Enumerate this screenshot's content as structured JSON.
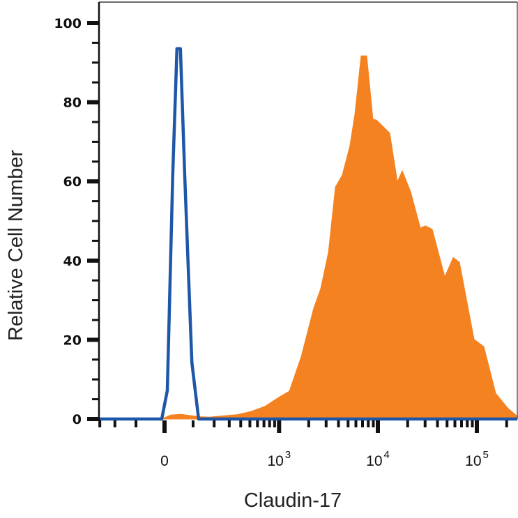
{
  "chart_data": {
    "type": "area",
    "xlabel": "Claudin-17",
    "ylabel": "Relative Cell Number",
    "x_scale": "biexponential",
    "xlim": [
      -305,
      260000
    ],
    "ylim": [
      0,
      100
    ],
    "grid": false,
    "y_ticks": [
      0,
      20,
      40,
      60,
      80,
      100
    ],
    "y_tick_labels": [
      "0",
      "20",
      "40",
      "60",
      "80",
      "100"
    ],
    "x_ticks": [
      {
        "value": 0,
        "base": "0",
        "exp": ""
      },
      {
        "value": 1000,
        "base": "10",
        "exp": "3"
      },
      {
        "value": 10000,
        "base": "10",
        "exp": "4"
      },
      {
        "value": 100000,
        "base": "10",
        "exp": "5"
      }
    ],
    "series": [
      {
        "style": "filled",
        "color": "#F58220",
        "points": [
          [
            -305,
            0
          ],
          [
            -9,
            0
          ],
          [
            20,
            1.0
          ],
          [
            55,
            1.2
          ],
          [
            123,
            0.6
          ],
          [
            173,
            0.5
          ],
          [
            365,
            1.1
          ],
          [
            513,
            1.9
          ],
          [
            717,
            3.2
          ],
          [
            1011,
            5.6
          ],
          [
            1271,
            7.0
          ],
          [
            1678,
            15.7
          ],
          [
            2247,
            28.0
          ],
          [
            2645,
            32.9
          ],
          [
            3164,
            42.1
          ],
          [
            3724,
            58.6
          ],
          [
            4374,
            61.6
          ],
          [
            5222,
            69.0
          ],
          [
            5852,
            76.9
          ],
          [
            6776,
            91.7
          ],
          [
            7714,
            91.7
          ],
          [
            8918,
            75.7
          ],
          [
            9674,
            75.5
          ],
          [
            13174,
            72.2
          ],
          [
            15750,
            59.9
          ],
          [
            17640,
            62.7
          ],
          [
            21420,
            57.4
          ],
          [
            26880,
            48.2
          ],
          [
            30100,
            48.8
          ],
          [
            35420,
            47.9
          ],
          [
            47460,
            35.9
          ],
          [
            57680,
            40.8
          ],
          [
            66640,
            39.6
          ],
          [
            93800,
            20.1
          ],
          [
            117600,
            18.3
          ],
          [
            155000,
            6.5
          ],
          [
            204000,
            2.8
          ],
          [
            260000,
            0.7
          ]
        ]
      },
      {
        "style": "line",
        "color": "#1F57A8",
        "points": [
          [
            -305,
            0
          ],
          [
            -9,
            0
          ],
          [
            9,
            7.2
          ],
          [
            27,
            61.8
          ],
          [
            41,
            93.5
          ],
          [
            53,
            93.5
          ],
          [
            68,
            61.8
          ],
          [
            95,
            14.3
          ],
          [
            123,
            0
          ],
          [
            260000,
            0
          ]
        ]
      }
    ]
  }
}
